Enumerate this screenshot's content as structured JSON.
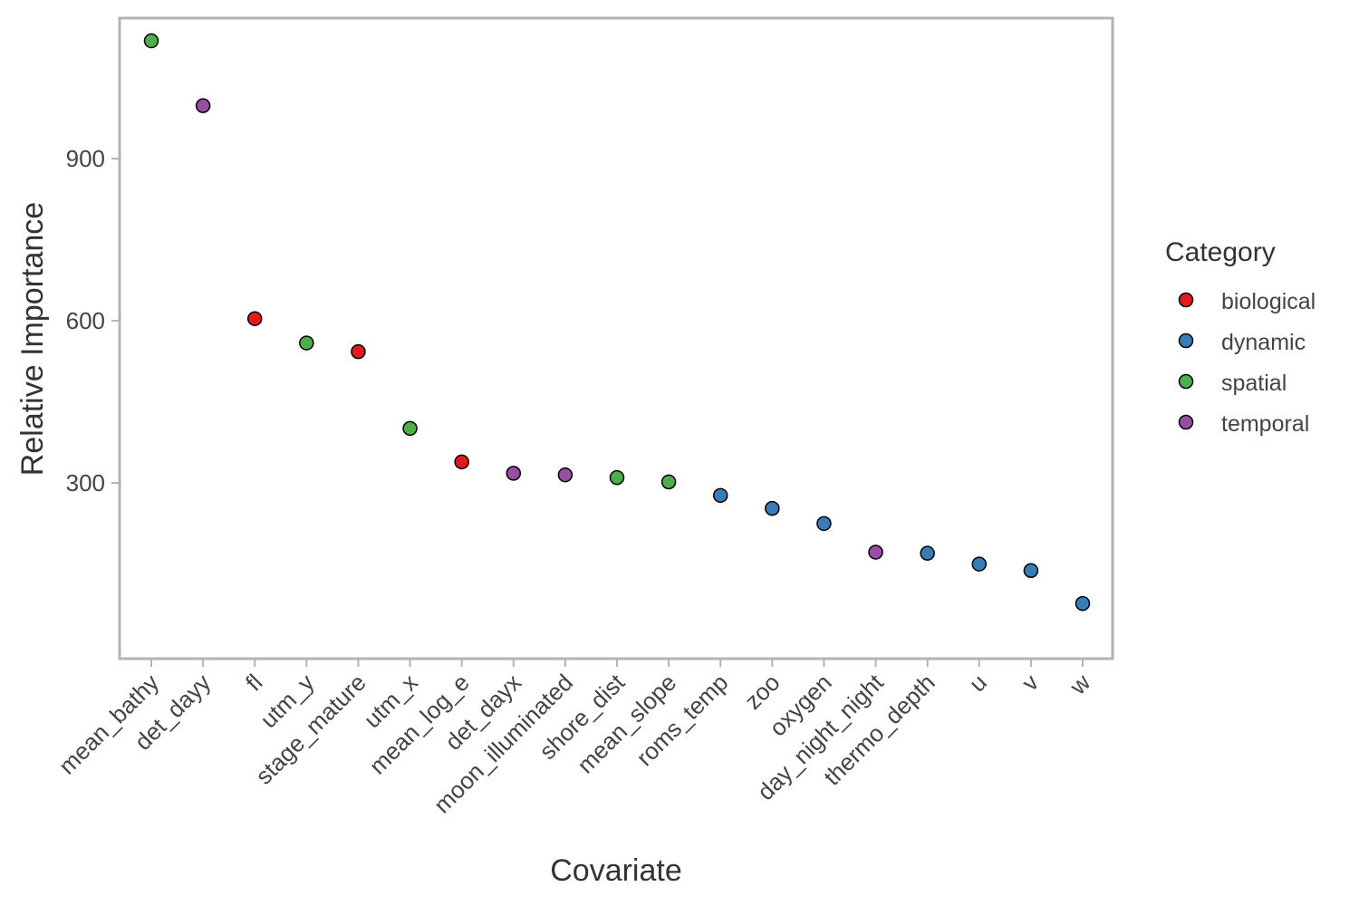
{
  "chart_data": {
    "type": "scatter",
    "title": "",
    "xlabel": "Covariate",
    "ylabel": "Relative Importance",
    "ylim": [
      -25,
      1160
    ],
    "yticks": [
      300,
      600,
      900
    ],
    "grid": false,
    "legend": {
      "title": "Category",
      "position": "right",
      "entries": [
        {
          "name": "biological",
          "color": "#E41A1C"
        },
        {
          "name": "dynamic",
          "color": "#377EB8"
        },
        {
          "name": "spatial",
          "color": "#4DAF4A"
        },
        {
          "name": "temporal",
          "color": "#984EA3"
        }
      ]
    },
    "points": [
      {
        "x": "mean_bathy",
        "y": 1118,
        "category": "spatial"
      },
      {
        "x": "det_dayy",
        "y": 998,
        "category": "temporal"
      },
      {
        "x": "fl",
        "y": 604,
        "category": "biological"
      },
      {
        "x": "utm_y",
        "y": 559,
        "category": "spatial"
      },
      {
        "x": "stage_mature",
        "y": 543,
        "category": "biological"
      },
      {
        "x": "utm_x",
        "y": 401,
        "category": "spatial"
      },
      {
        "x": "mean_log_e",
        "y": 339,
        "category": "biological"
      },
      {
        "x": "det_dayx",
        "y": 318,
        "category": "temporal"
      },
      {
        "x": "moon_illuminated",
        "y": 315,
        "category": "temporal"
      },
      {
        "x": "shore_dist",
        "y": 310,
        "category": "spatial"
      },
      {
        "x": "mean_slope",
        "y": 302,
        "category": "spatial"
      },
      {
        "x": "roms_temp",
        "y": 277,
        "category": "dynamic"
      },
      {
        "x": "zoo",
        "y": 253,
        "category": "dynamic"
      },
      {
        "x": "oxygen",
        "y": 225,
        "category": "dynamic"
      },
      {
        "x": "day_night_night",
        "y": 172,
        "category": "temporal"
      },
      {
        "x": "thermo_depth",
        "y": 170,
        "category": "dynamic"
      },
      {
        "x": "u",
        "y": 150,
        "category": "dynamic"
      },
      {
        "x": "v",
        "y": 138,
        "category": "dynamic"
      },
      {
        "x": "w",
        "y": 77,
        "category": "dynamic"
      }
    ]
  }
}
